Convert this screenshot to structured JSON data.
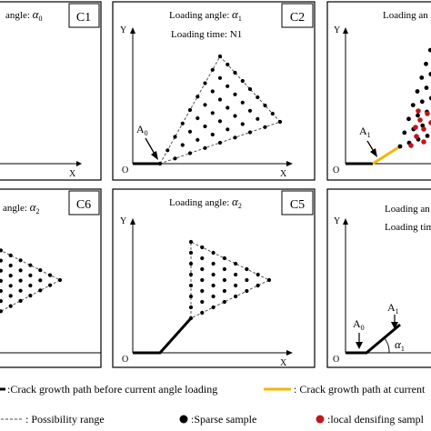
{
  "panels": [
    {
      "id": "c1",
      "tag": "C1",
      "title_lines": [
        {
          "text": "angle: ",
          "sym": "α",
          "sub": "0"
        }
      ],
      "axis_x": "X",
      "axis_y": "",
      "origin": ""
    },
    {
      "id": "c2",
      "tag": "C2",
      "title_lines": [
        {
          "text": "Loading angle: ",
          "sym": "α",
          "sub": "1"
        },
        {
          "text": "Loading time: N1",
          "sym": "",
          "sub": ""
        }
      ],
      "axis_x": "X",
      "axis_y": "Y",
      "origin": "O",
      "marker": {
        "letter": "A",
        "sub": "0"
      }
    },
    {
      "id": "c3",
      "tag": "",
      "title_lines": [
        {
          "text": "Loading an",
          "sym": "",
          "sub": ""
        }
      ],
      "axis_x": "",
      "axis_y": "Y",
      "origin": "O",
      "marker": {
        "letter": "A",
        "sub": "1"
      }
    },
    {
      "id": "c6",
      "tag": "C6",
      "title_lines": [
        {
          "text": "angle: ",
          "sym": "α",
          "sub": "2"
        }
      ],
      "axis_x": "",
      "axis_y": "",
      "origin": ""
    },
    {
      "id": "c5",
      "tag": "C5",
      "title_lines": [
        {
          "text": "Loading angle: ",
          "sym": "α",
          "sub": "2"
        }
      ],
      "axis_x": "X",
      "axis_y": "Y",
      "origin": "O"
    },
    {
      "id": "c4",
      "tag": "",
      "title_lines": [
        {
          "text": "Loading an",
          "sym": "",
          "sub": ""
        },
        {
          "text": "Loading tim",
          "sym": "",
          "sub": ""
        }
      ],
      "axis_x": "",
      "axis_y": "Y",
      "origin": "O",
      "markers": [
        {
          "letter": "A",
          "sub": "0"
        },
        {
          "letter": "A",
          "sub": "1"
        }
      ],
      "angle_label": {
        "sym": "α",
        "sub": "1"
      }
    }
  ],
  "legend": {
    "crack_before": ":Crack growth path before current angle loading",
    "crack_current": ": Crack growth path at current",
    "possibility": ":  Possibility range",
    "sparse": ":Sparse sample",
    "dense": ":local densifing sampl"
  },
  "colors": {
    "crack_before": "#000000",
    "crack_current": "#f2b705",
    "dense": "#c0161d",
    "sparse": "#000000"
  }
}
